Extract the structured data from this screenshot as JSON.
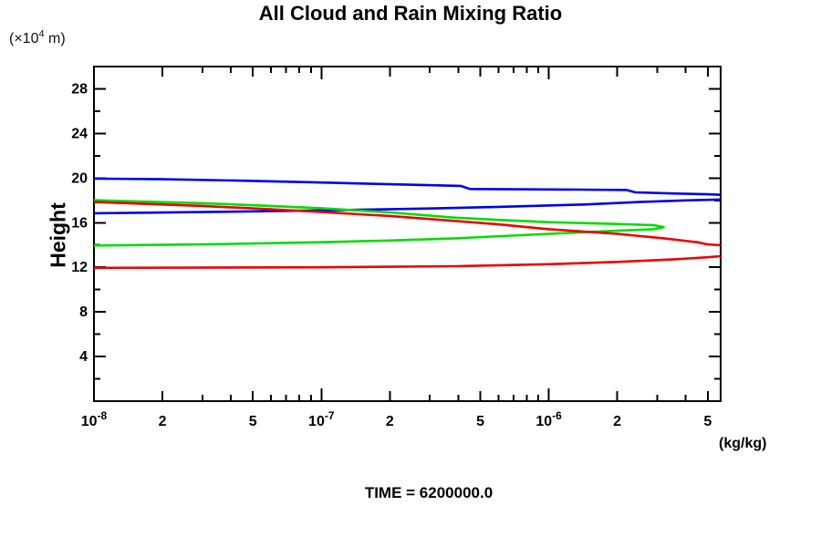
{
  "page": {
    "title": "All Cloud and Rain Mixing Ratio",
    "time_label": "TIME = 6200000.0"
  },
  "axes": {
    "y_unit_pre": "(×10",
    "y_unit_sup": "4",
    "y_unit_post": " m)",
    "y_label": "Height",
    "x_unit_label": "(kg/kg)"
  },
  "chart_data": {
    "type": "line",
    "title": "All Cloud and Rain Mixing Ratio",
    "subtitle": "TIME = 6200000.0",
    "xlabel": "(kg/kg)",
    "ylabel": "Height",
    "y_units": "(×10^4 m)",
    "x_scale": "log",
    "xlim": [
      1e-08,
      5.7e-06
    ],
    "ylim": [
      0,
      30
    ],
    "grid": false,
    "legend": "none",
    "y_major_ticks": [
      4,
      8,
      12,
      16,
      20,
      24,
      28
    ],
    "y_minor_step": 2,
    "x_tick_labels": [
      {
        "value": 1e-08,
        "base": "10",
        "sup": "-8"
      },
      {
        "value": 2e-08,
        "base": "2"
      },
      {
        "value": 5e-08,
        "base": "5"
      },
      {
        "value": 1e-07,
        "base": "10",
        "sup": "-7"
      },
      {
        "value": 2e-07,
        "base": "2"
      },
      {
        "value": 5e-07,
        "base": "5"
      },
      {
        "value": 1e-06,
        "base": "10",
        "sup": "-6"
      },
      {
        "value": 2e-06,
        "base": "2"
      },
      {
        "value": 5e-06,
        "base": "5"
      }
    ],
    "series": [
      {
        "name": "blue-profile",
        "color": "#0000ee",
        "points": [
          [
            1e-08,
            19.95
          ],
          [
            2e-08,
            19.9
          ],
          [
            5e-08,
            19.75
          ],
          [
            1e-07,
            19.6
          ],
          [
            2e-07,
            19.45
          ],
          [
            4.1e-07,
            19.3
          ],
          [
            4.5e-07,
            19.02
          ],
          [
            1.2e-06,
            18.97
          ],
          [
            2.2e-06,
            18.93
          ],
          [
            2.4e-06,
            18.72
          ],
          [
            3.5e-06,
            18.62
          ],
          [
            5e-06,
            18.55
          ],
          [
            5.7e-06,
            18.5
          ],
          [
            9e-06,
            18.3
          ],
          [
            5.7e-06,
            18.08
          ],
          [
            4e-06,
            18.0
          ],
          [
            2.5e-06,
            17.85
          ],
          [
            1.4e-06,
            17.62
          ],
          [
            6e-07,
            17.42
          ],
          [
            3e-07,
            17.27
          ],
          [
            1e-07,
            17.1
          ],
          [
            3e-08,
            16.95
          ],
          [
            1e-08,
            16.85
          ]
        ]
      },
      {
        "name": "green-profile",
        "color": "#00dd00",
        "points": [
          [
            1e-08,
            18.02
          ],
          [
            3e-08,
            17.75
          ],
          [
            6e-08,
            17.5
          ],
          [
            1e-07,
            17.3
          ],
          [
            2e-07,
            16.92
          ],
          [
            3.9e-07,
            16.45
          ],
          [
            6e-07,
            16.25
          ],
          [
            1e-06,
            16.05
          ],
          [
            2e-06,
            15.88
          ],
          [
            2.9e-06,
            15.78
          ],
          [
            3.2e-06,
            15.6
          ],
          [
            2.9e-06,
            15.42
          ],
          [
            2e-06,
            15.28
          ],
          [
            1e-06,
            15.0
          ],
          [
            3.9e-07,
            14.6
          ],
          [
            2e-07,
            14.4
          ],
          [
            1e-07,
            14.25
          ],
          [
            3e-08,
            14.05
          ],
          [
            1e-08,
            13.95
          ]
        ]
      },
      {
        "name": "red-profile",
        "color": "#ee0000",
        "points": [
          [
            1e-08,
            17.85
          ],
          [
            3e-08,
            17.5
          ],
          [
            6e-08,
            17.2
          ],
          [
            1e-07,
            16.95
          ],
          [
            2e-07,
            16.6
          ],
          [
            3.9e-07,
            16.15
          ],
          [
            6e-07,
            15.85
          ],
          [
            1e-06,
            15.42
          ],
          [
            2e-06,
            15.0
          ],
          [
            3.2e-06,
            14.6
          ],
          [
            4.5e-06,
            14.25
          ],
          [
            5e-06,
            14.05
          ],
          [
            5.7e-06,
            13.98
          ],
          [
            8.5e-06,
            13.5
          ],
          [
            5.7e-06,
            13.0
          ],
          [
            5e-06,
            12.9
          ],
          [
            3.5e-06,
            12.7
          ],
          [
            2e-06,
            12.48
          ],
          [
            1e-06,
            12.28
          ],
          [
            3.9e-07,
            12.1
          ],
          [
            1e-07,
            12.0
          ],
          [
            1e-08,
            11.95
          ]
        ]
      }
    ]
  }
}
